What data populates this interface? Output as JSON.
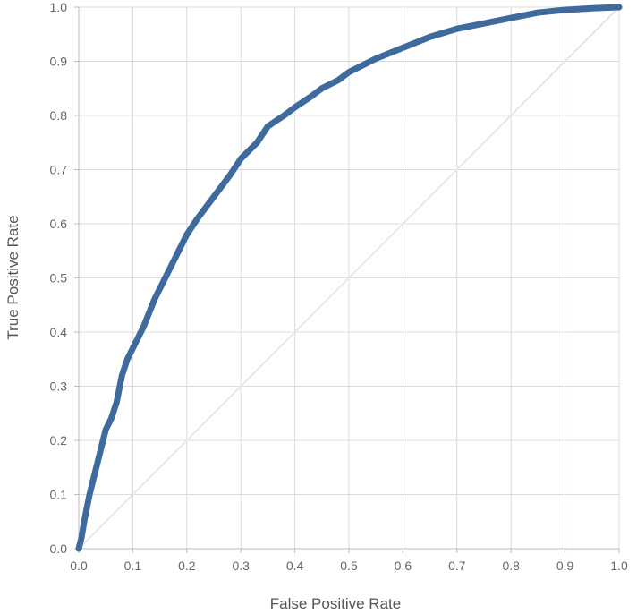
{
  "chart_data": {
    "type": "line",
    "xlabel": "False Positive Rate",
    "ylabel": "True Positive Rate",
    "xlim": [
      0,
      1
    ],
    "ylim": [
      0,
      1
    ],
    "x_ticks": [
      "0.0",
      "0.1",
      "0.2",
      "0.3",
      "0.4",
      "0.5",
      "0.6",
      "0.7",
      "0.8",
      "0.9",
      "1.0"
    ],
    "y_ticks": [
      "0.0",
      "0.1",
      "0.2",
      "0.3",
      "0.4",
      "0.5",
      "0.6",
      "0.7",
      "0.8",
      "0.9",
      "1.0"
    ],
    "grid": true,
    "legend": "none",
    "colors": {
      "roc": "#3f6a9e",
      "diagonal": "#e8e8e8",
      "grid": "#dcdcdc"
    },
    "series": [
      {
        "x": [
          0.0,
          0.005,
          0.01,
          0.02,
          0.03,
          0.04,
          0.05,
          0.06,
          0.07,
          0.08,
          0.09,
          0.1,
          0.12,
          0.14,
          0.15,
          0.17,
          0.2,
          0.22,
          0.25,
          0.28,
          0.3,
          0.33,
          0.35,
          0.38,
          0.4,
          0.43,
          0.45,
          0.48,
          0.5,
          0.55,
          0.6,
          0.65,
          0.7,
          0.75,
          0.8,
          0.85,
          0.9,
          0.95,
          1.0
        ],
        "y": [
          0.0,
          0.02,
          0.05,
          0.1,
          0.14,
          0.18,
          0.22,
          0.24,
          0.27,
          0.32,
          0.35,
          0.37,
          0.41,
          0.46,
          0.48,
          0.52,
          0.58,
          0.61,
          0.65,
          0.69,
          0.72,
          0.75,
          0.78,
          0.8,
          0.815,
          0.835,
          0.85,
          0.865,
          0.88,
          0.905,
          0.925,
          0.945,
          0.96,
          0.97,
          0.98,
          0.99,
          0.995,
          0.998,
          1.0
        ]
      },
      {
        "x": [
          0,
          1
        ],
        "y": [
          0,
          1
        ]
      }
    ]
  }
}
